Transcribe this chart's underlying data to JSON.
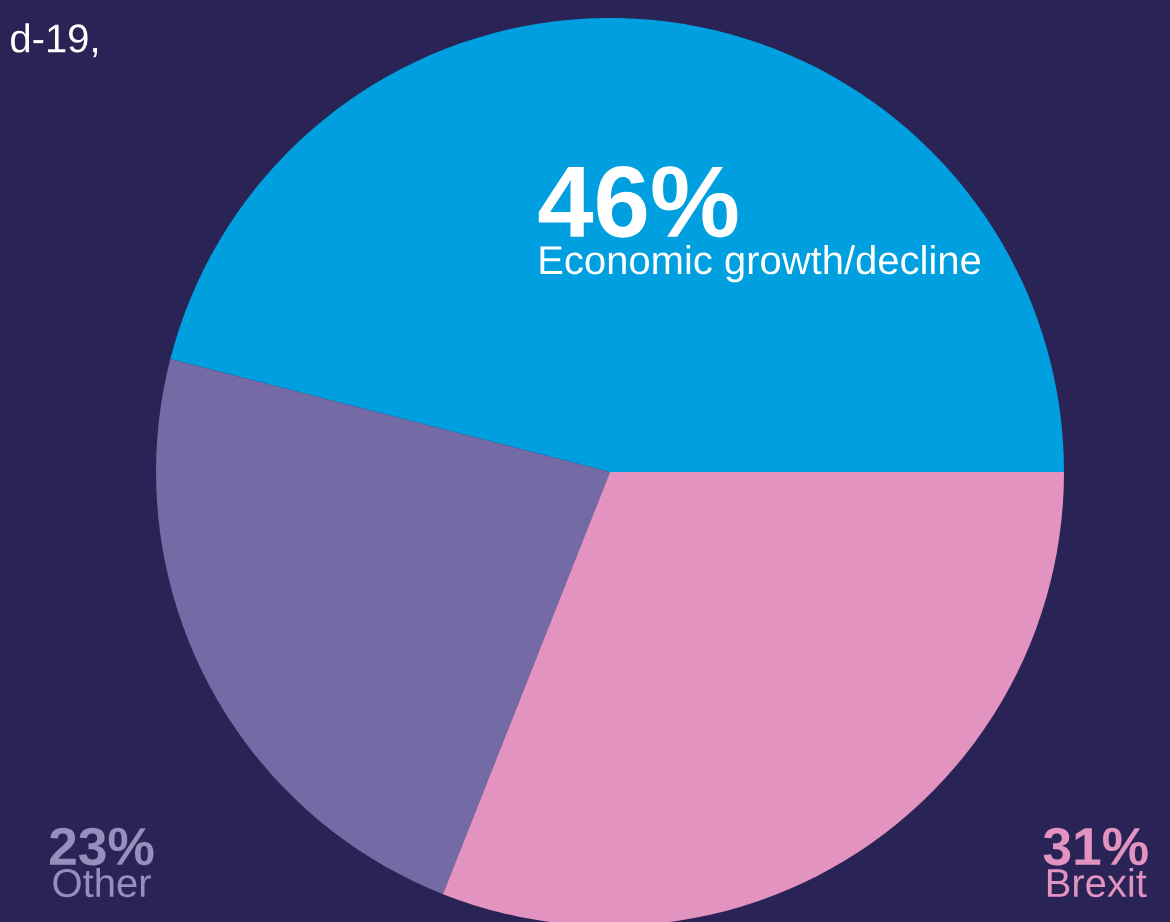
{
  "chart_data": {
    "type": "pie",
    "categories": [
      "Economic growth/decline",
      "Other",
      "Brexit"
    ],
    "values": [
      46,
      23,
      31
    ],
    "value_labels": [
      "46%",
      "23%",
      "31%"
    ],
    "colors": [
      "#009fdf",
      "#736aa6",
      "#e393c0"
    ],
    "annotations": [
      "d-19,"
    ]
  }
}
